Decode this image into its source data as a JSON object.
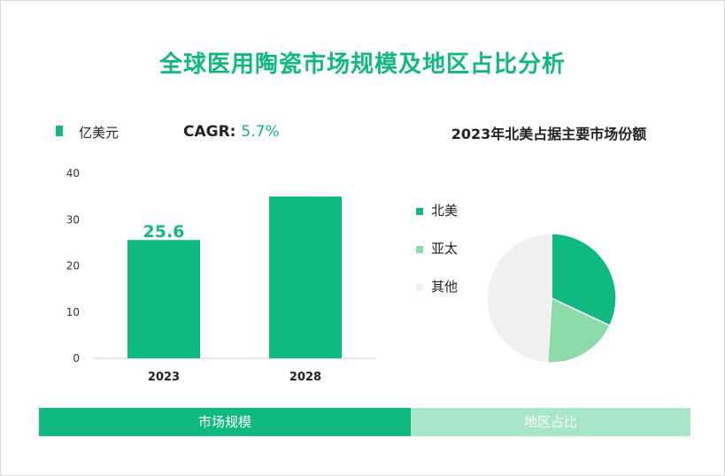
{
  "title": "全球医用陶瓷市场规模及地区占比分析",
  "legend_label": "亿美元",
  "cagr_label": "CAGR:",
  "cagr_value": "5.7%",
  "pie_title": "2023年北美占据主要市场份额",
  "colors": {
    "accent": "#10b981",
    "light_green": "#8ddba9",
    "grey": "#f0f0f0",
    "tab_light": "#a9e6c8"
  },
  "bottom_tabs": {
    "left": "市场规模",
    "right": "地区占比"
  },
  "chart_data": [
    {
      "type": "bar",
      "categories": [
        "2023",
        "2028"
      ],
      "values": [
        25.6,
        35
      ],
      "data_labels": [
        "25.6",
        ""
      ],
      "ylim": [
        0,
        40
      ],
      "yticks": [
        0,
        10,
        20,
        30,
        40
      ],
      "legend": [
        "亿美元"
      ],
      "grid": false
    },
    {
      "type": "pie",
      "title": "2023年北美占据主要市场份额",
      "labels": [
        "北美",
        "亚太",
        "其他"
      ],
      "values": [
        32,
        19,
        49
      ],
      "colors": [
        "#10b981",
        "#8ddba9",
        "#f0f0f0"
      ]
    }
  ]
}
